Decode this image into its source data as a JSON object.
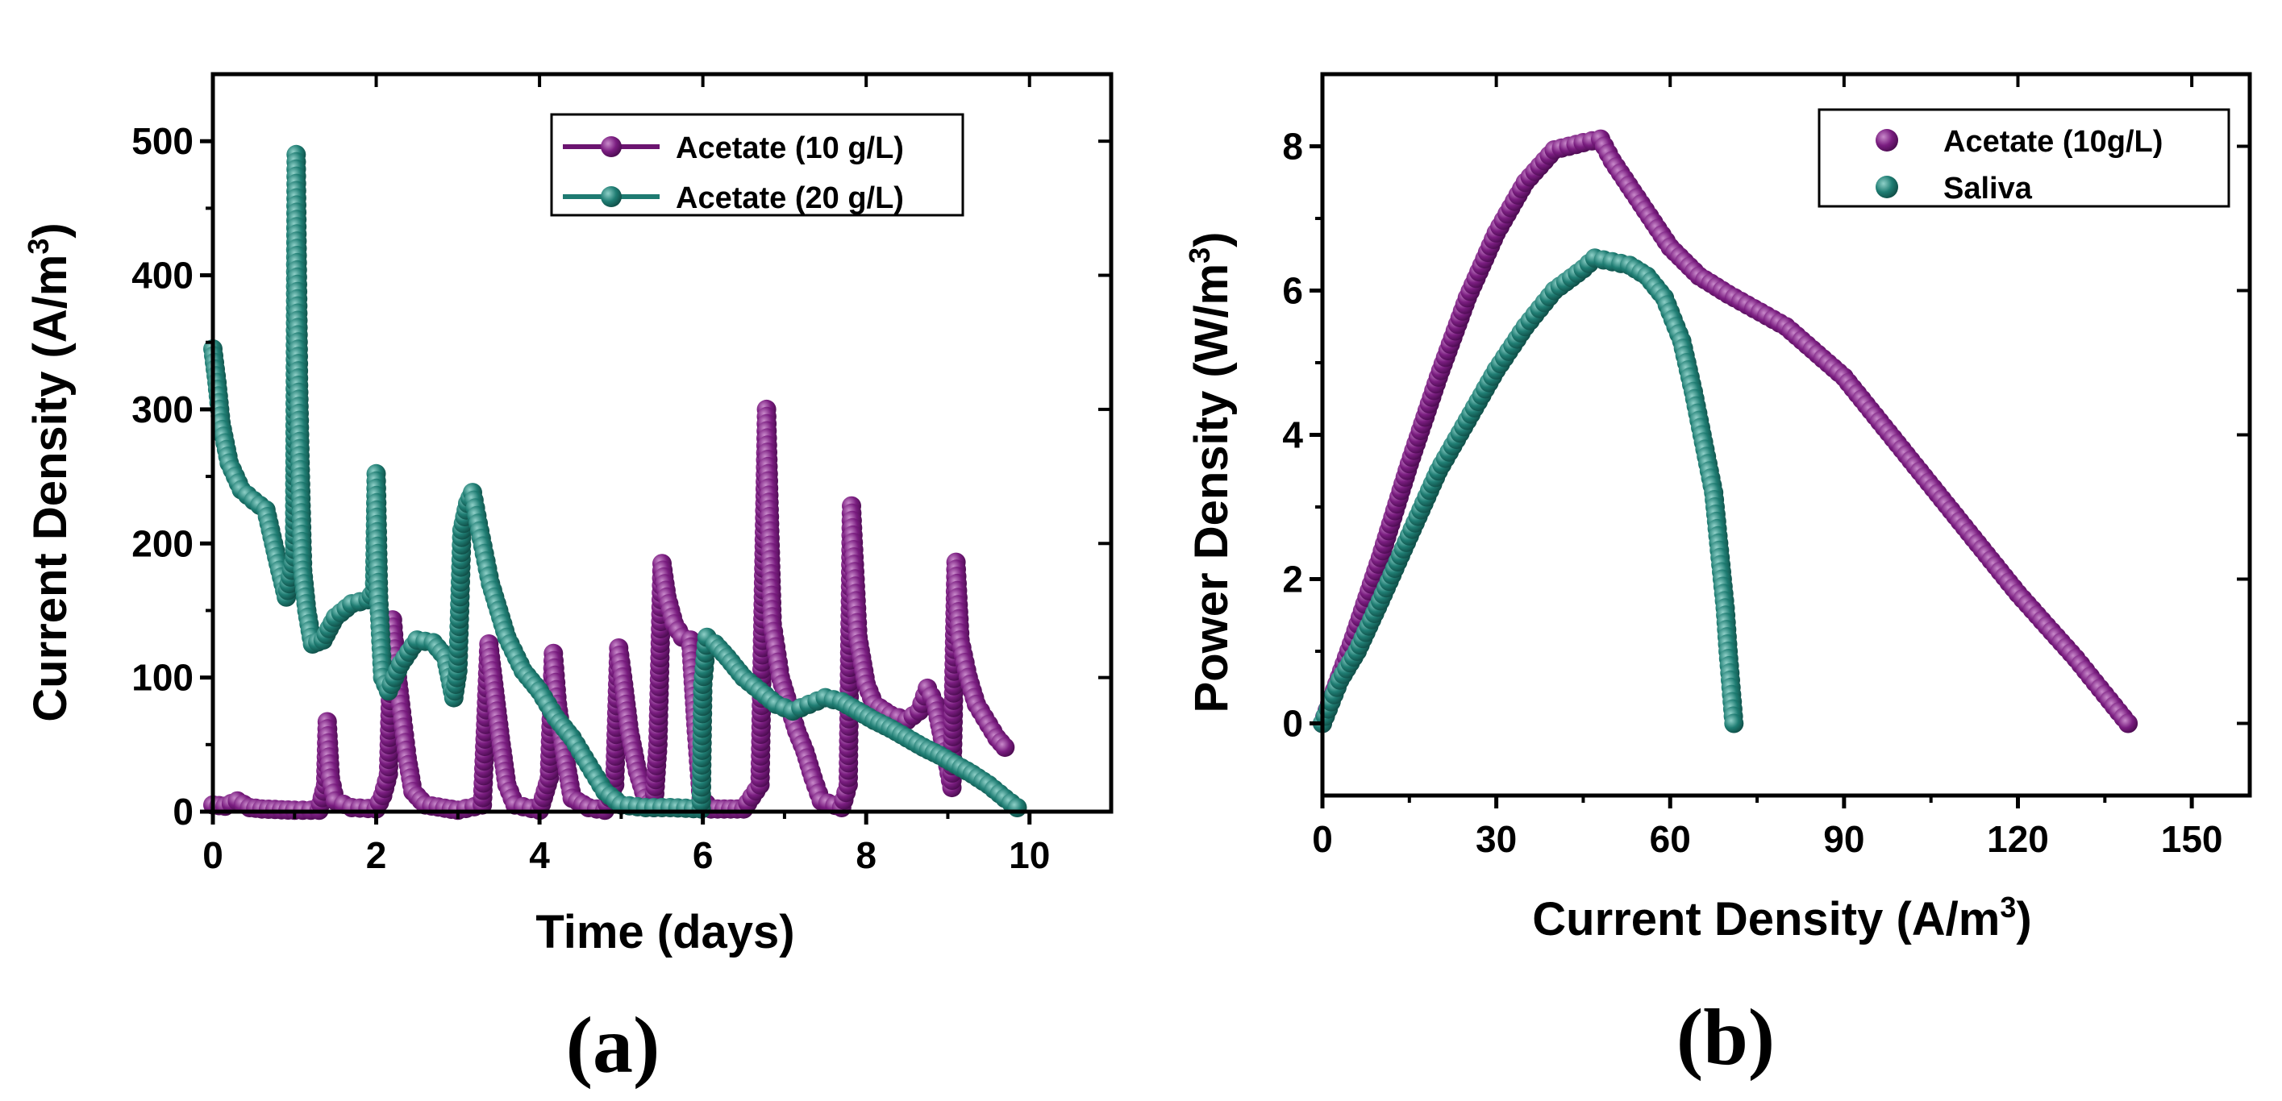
{
  "colors": {
    "acetate": "#6b1470",
    "acetate_light": "#a64aa9",
    "teal": "#1e7a71",
    "teal_light": "#56aaa1"
  },
  "chart_data": [
    {
      "type": "line",
      "panel_label": "(a)",
      "xlabel": "Time (days)",
      "ylabel": "Current Density (A/m",
      "ylabel_sup": "3",
      "ylabel_end": ")",
      "xlim": [
        0,
        11
      ],
      "ylim": [
        0,
        550
      ],
      "xticks": [
        0,
        2,
        4,
        6,
        8,
        10
      ],
      "yticks": [
        0,
        100,
        200,
        300,
        400,
        500
      ],
      "legend_position": "top-right",
      "series": [
        {
          "name": "Acetate (10 g/L)",
          "color_key": "acetate",
          "points": [
            [
              0,
              5
            ],
            [
              0.15,
              4
            ],
            [
              0.3,
              8
            ],
            [
              0.45,
              3
            ],
            [
              0.6,
              2
            ],
            [
              1.0,
              1
            ],
            [
              1.3,
              1
            ],
            [
              1.38,
              20
            ],
            [
              1.4,
              67
            ],
            [
              1.44,
              25
            ],
            [
              1.5,
              8
            ],
            [
              1.7,
              3
            ],
            [
              2.0,
              2
            ],
            [
              2.08,
              12
            ],
            [
              2.15,
              28
            ],
            [
              2.2,
              143
            ],
            [
              2.25,
              105
            ],
            [
              2.3,
              80
            ],
            [
              2.38,
              40
            ],
            [
              2.45,
              15
            ],
            [
              2.6,
              5
            ],
            [
              3.0,
              1
            ],
            [
              3.3,
              5
            ],
            [
              3.38,
              125
            ],
            [
              3.45,
              90
            ],
            [
              3.52,
              55
            ],
            [
              3.6,
              20
            ],
            [
              3.7,
              5
            ],
            [
              4.0,
              1
            ],
            [
              4.12,
              25
            ],
            [
              4.17,
              118
            ],
            [
              4.22,
              80
            ],
            [
              4.3,
              45
            ],
            [
              4.4,
              10
            ],
            [
              4.6,
              3
            ],
            [
              4.8,
              1
            ],
            [
              4.92,
              20
            ],
            [
              4.97,
              122
            ],
            [
              5.03,
              95
            ],
            [
              5.1,
              60
            ],
            [
              5.2,
              30
            ],
            [
              5.3,
              10
            ],
            [
              5.4,
              3
            ],
            [
              5.45,
              50
            ],
            [
              5.5,
              185
            ],
            [
              5.56,
              160
            ],
            [
              5.65,
              140
            ],
            [
              5.75,
              130
            ],
            [
              5.85,
              128
            ],
            [
              5.92,
              60
            ],
            [
              5.98,
              10
            ],
            [
              6.1,
              2
            ],
            [
              6.5,
              2
            ],
            [
              6.7,
              20
            ],
            [
              6.78,
              300
            ],
            [
              6.85,
              140
            ],
            [
              6.95,
              100
            ],
            [
              7.05,
              80
            ],
            [
              7.15,
              60
            ],
            [
              7.25,
              45
            ],
            [
              7.35,
              25
            ],
            [
              7.45,
              8
            ],
            [
              7.7,
              3
            ],
            [
              7.78,
              20
            ],
            [
              7.82,
              228
            ],
            [
              7.9,
              130
            ],
            [
              8.0,
              95
            ],
            [
              8.1,
              80
            ],
            [
              8.3,
              72
            ],
            [
              8.5,
              68
            ],
            [
              8.65,
              75
            ],
            [
              8.75,
              92
            ],
            [
              8.85,
              80
            ],
            [
              8.95,
              50
            ],
            [
              9.05,
              18
            ],
            [
              9.1,
              186
            ],
            [
              9.15,
              128
            ],
            [
              9.25,
              100
            ],
            [
              9.35,
              80
            ],
            [
              9.5,
              65
            ],
            [
              9.6,
              55
            ],
            [
              9.7,
              48
            ]
          ]
        },
        {
          "name": "Acetate (20 g/L)",
          "color_key": "teal",
          "points": [
            [
              0,
              345
            ],
            [
              0.05,
              320
            ],
            [
              0.1,
              290
            ],
            [
              0.2,
              260
            ],
            [
              0.35,
              240
            ],
            [
              0.5,
              232
            ],
            [
              0.65,
              225
            ],
            [
              0.8,
              185
            ],
            [
              0.9,
              160
            ],
            [
              1.0,
              190
            ],
            [
              1.02,
              490
            ],
            [
              1.05,
              318
            ],
            [
              1.07,
              255
            ],
            [
              1.1,
              180
            ],
            [
              1.15,
              150
            ],
            [
              1.22,
              125
            ],
            [
              1.35,
              128
            ],
            [
              1.5,
              145
            ],
            [
              1.7,
              155
            ],
            [
              1.9,
              158
            ],
            [
              1.98,
              165
            ],
            [
              2.0,
              252
            ],
            [
              2.03,
              160
            ],
            [
              2.08,
              100
            ],
            [
              2.15,
              90
            ],
            [
              2.3,
              110
            ],
            [
              2.5,
              128
            ],
            [
              2.7,
              126
            ],
            [
              2.85,
              115
            ],
            [
              2.95,
              85
            ],
            [
              3.0,
              105
            ],
            [
              3.05,
              210
            ],
            [
              3.12,
              230
            ],
            [
              3.18,
              238
            ],
            [
              3.25,
              215
            ],
            [
              3.4,
              170
            ],
            [
              3.6,
              130
            ],
            [
              3.8,
              105
            ],
            [
              4.0,
              90
            ],
            [
              4.2,
              70
            ],
            [
              4.4,
              55
            ],
            [
              4.6,
              35
            ],
            [
              4.8,
              15
            ],
            [
              5.0,
              5
            ],
            [
              5.3,
              3
            ],
            [
              5.6,
              3
            ],
            [
              5.98,
              2
            ],
            [
              6.0,
              95
            ],
            [
              6.05,
              130
            ],
            [
              6.15,
              125
            ],
            [
              6.3,
              115
            ],
            [
              6.5,
              100
            ],
            [
              6.7,
              90
            ],
            [
              6.9,
              80
            ],
            [
              7.1,
              75
            ],
            [
              7.3,
              80
            ],
            [
              7.5,
              85
            ],
            [
              7.7,
              82
            ],
            [
              7.9,
              75
            ],
            [
              8.1,
              68
            ],
            [
              8.3,
              62
            ],
            [
              8.5,
              55
            ],
            [
              8.7,
              48
            ],
            [
              8.9,
              42
            ],
            [
              9.1,
              35
            ],
            [
              9.3,
              28
            ],
            [
              9.5,
              20
            ],
            [
              9.7,
              10
            ],
            [
              9.85,
              3
            ]
          ]
        }
      ]
    },
    {
      "type": "scatter",
      "panel_label": "(b)",
      "xlabel": "Current Density (A/m",
      "xlabel_sup": "3",
      "xlabel_end": ")",
      "ylabel": "Power Density (W/m",
      "ylabel_sup": "3",
      "ylabel_end": ")",
      "xlim": [
        0,
        160
      ],
      "ylim": [
        -1,
        9
      ],
      "xticks": [
        0,
        30,
        60,
        90,
        120,
        150
      ],
      "yticks": [
        0,
        2,
        4,
        6,
        8
      ],
      "legend_position": "top-right",
      "series": [
        {
          "name": "Acetate (10g/L)",
          "color_key": "acetate",
          "points": [
            [
              0,
              0
            ],
            [
              5,
              1.1
            ],
            [
              10,
              2.3
            ],
            [
              15,
              3.6
            ],
            [
              20,
              4.8
            ],
            [
              25,
              5.9
            ],
            [
              30,
              6.8
            ],
            [
              35,
              7.5
            ],
            [
              40,
              7.95
            ],
            [
              45,
              8.05
            ],
            [
              48,
              8.1
            ],
            [
              50,
              7.8
            ],
            [
              55,
              7.2
            ],
            [
              60,
              6.6
            ],
            [
              65,
              6.2
            ],
            [
              70,
              5.95
            ],
            [
              80,
              5.5
            ],
            [
              90,
              4.8
            ],
            [
              100,
              3.8
            ],
            [
              110,
              2.8
            ],
            [
              120,
              1.8
            ],
            [
              130,
              0.9
            ],
            [
              135,
              0.4
            ],
            [
              139,
              0.0
            ]
          ]
        },
        {
          "name": "Saliva",
          "color_key": "teal",
          "points": [
            [
              0,
              0
            ],
            [
              3,
              0.6
            ],
            [
              6,
              1.0
            ],
            [
              10,
              1.7
            ],
            [
              15,
              2.6
            ],
            [
              20,
              3.5
            ],
            [
              25,
              4.2
            ],
            [
              30,
              4.9
            ],
            [
              35,
              5.5
            ],
            [
              40,
              6.0
            ],
            [
              45,
              6.3
            ],
            [
              47,
              6.45
            ],
            [
              50,
              6.4
            ],
            [
              53,
              6.35
            ],
            [
              56,
              6.2
            ],
            [
              59,
              5.9
            ],
            [
              62,
              5.3
            ],
            [
              64,
              4.6
            ],
            [
              66,
              3.8
            ],
            [
              67.5,
              3.2
            ],
            [
              68.5,
              2.4
            ],
            [
              69.5,
              1.6
            ],
            [
              70,
              1.0
            ],
            [
              70.5,
              0.5
            ],
            [
              71,
              0.0
            ]
          ]
        }
      ]
    }
  ]
}
